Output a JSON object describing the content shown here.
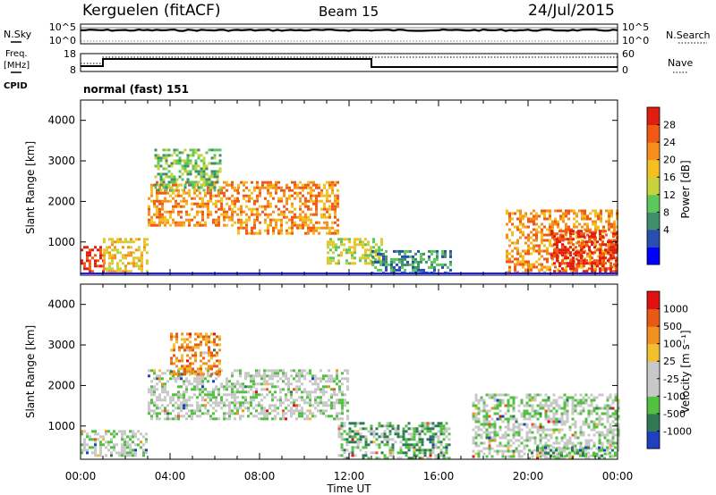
{
  "header": {
    "station": "Kerguelen (fitACF)",
    "beam": "Beam 15",
    "date": "24/Jul/2015"
  },
  "top_panels": {
    "nsky_label": "N.Sky",
    "nsky_ticks": [
      "10^5",
      "10^0"
    ],
    "nsearch_label": "N.Search",
    "nsearch_ticks": [
      "10^5",
      "10^0"
    ],
    "freq_label_1": "Freq.",
    "freq_label_2": "[MHz]",
    "freq_ticks": [
      "18",
      "8"
    ],
    "nave_label": "Nave",
    "nave_ticks": [
      "60",
      "0"
    ],
    "cpid_label": "CPID",
    "cpid_value": "normal (fast) 151"
  },
  "chart_data": [
    {
      "type": "heatmap",
      "ylabel": "Slant Range [km]",
      "yticks": [
        1000,
        2000,
        3000,
        4000
      ],
      "ylim": [
        180,
        4500
      ],
      "xlim_hours": [
        0,
        24
      ],
      "colorbar": {
        "label": "Power [dB]",
        "ticks": [
          "28",
          "24",
          "20",
          "16",
          "12",
          "8",
          "4"
        ],
        "colors": [
          "#0000ff",
          "#2a4db0",
          "#3f8f6a",
          "#5cc85c",
          "#c8d23c",
          "#f4c020",
          "#f78e1e",
          "#f05a14",
          "#e01e10"
        ]
      },
      "echo_regions": [
        {
          "t0": 0.0,
          "t1": 1.0,
          "r0": 250,
          "r1": 900,
          "level": 8
        },
        {
          "t0": 1.0,
          "t1": 3.0,
          "r0": 250,
          "r1": 1100,
          "level": 5
        },
        {
          "t0": 3.0,
          "t1": 7.0,
          "r0": 1400,
          "r1": 2500,
          "level": 6
        },
        {
          "t0": 3.3,
          "t1": 6.2,
          "r0": 2300,
          "r1": 3300,
          "level": 3
        },
        {
          "t0": 7.0,
          "t1": 11.5,
          "r0": 1200,
          "r1": 2500,
          "level": 6
        },
        {
          "t0": 11.0,
          "t1": 13.5,
          "r0": 500,
          "r1": 1100,
          "level": 4
        },
        {
          "t0": 13.0,
          "t1": 16.5,
          "r0": 250,
          "r1": 800,
          "level": 2
        },
        {
          "t0": 19.0,
          "t1": 24.0,
          "r0": 250,
          "r1": 1800,
          "level": 6
        },
        {
          "t0": 21.0,
          "t1": 24.0,
          "r0": 250,
          "r1": 1300,
          "level": 8
        }
      ]
    },
    {
      "type": "heatmap",
      "ylabel": "Slant Range [km]",
      "xlabel": "Time UT",
      "xticks": [
        "00:00",
        "04:00",
        "08:00",
        "12:00",
        "16:00",
        "20:00",
        "00:00"
      ],
      "yticks": [
        1000,
        2000,
        3000,
        4000
      ],
      "ylim": [
        180,
        4500
      ],
      "xlim_hours": [
        0,
        24
      ],
      "colorbar": {
        "label": "Velocity [m s⁻¹]",
        "ticks": [
          "1000",
          "500",
          "100",
          "25",
          "-25",
          "-100",
          "-500",
          "-1000"
        ],
        "colors": [
          "#2040c0",
          "#2f7a55",
          "#52c040",
          "#c8c8c8",
          "#c8c8c8",
          "#f0c030",
          "#f29020",
          "#e85a14",
          "#e01010"
        ]
      },
      "echo_regions": [
        {
          "t0": 0.0,
          "t1": 3.0,
          "r0": 250,
          "r1": 900,
          "level": 3
        },
        {
          "t0": 3.0,
          "t1": 12.0,
          "r0": 1200,
          "r1": 2400,
          "level": 3
        },
        {
          "t0": 4.0,
          "t1": 6.2,
          "r0": 2300,
          "r1": 3300,
          "level": 6
        },
        {
          "t0": 11.5,
          "t1": 16.5,
          "r0": 200,
          "r1": 1100,
          "level": 2
        },
        {
          "t0": 17.5,
          "t1": 24.0,
          "r0": 250,
          "r1": 1800,
          "level": 3
        },
        {
          "t0": 20.0,
          "t1": 24.0,
          "r0": 200,
          "r1": 500,
          "level": 2
        }
      ]
    }
  ]
}
